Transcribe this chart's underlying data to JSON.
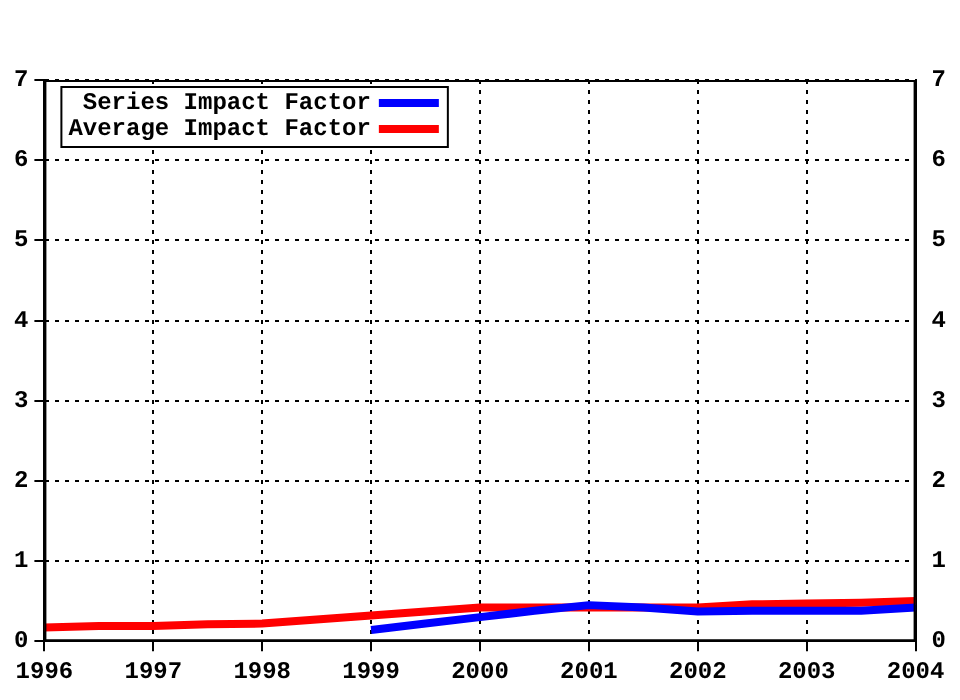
{
  "chart_data": {
    "type": "line",
    "xlim": [
      1996,
      2004
    ],
    "xticks": [
      1996,
      1997,
      1998,
      1999,
      2000,
      2001,
      2002,
      2003,
      2004
    ],
    "ylim": [
      0,
      7
    ],
    "yticks": [
      0,
      1,
      2,
      3,
      4,
      5,
      6,
      7
    ],
    "y2lim": [
      0,
      7
    ],
    "y2ticks": [
      0,
      1,
      2,
      3,
      4,
      5,
      6,
      7
    ],
    "grid": true,
    "legend": "top left",
    "line_style": "solid",
    "marker": "none",
    "series": [
      {
        "name": "Series Impact Factor",
        "color": "#0000ff",
        "x": [
          1999,
          1999.5,
          2000,
          2000.5,
          2001,
          2001.5,
          2002,
          2002.5,
          2003,
          2003.5,
          2004
        ],
        "values": [
          0.14,
          0.22,
          0.3,
          0.38,
          0.45,
          0.42,
          0.37,
          0.38,
          0.38,
          0.38,
          0.42
        ]
      },
      {
        "name": "Average Impact Factor",
        "color": "#ff0000",
        "x": [
          1996,
          1996.5,
          1997,
          1997.5,
          1998,
          1998.5,
          1999,
          1999.5,
          2000,
          2000.5,
          2001,
          2001.5,
          2002,
          2002.5,
          2003,
          2003.5,
          2004
        ],
        "values": [
          0.17,
          0.19,
          0.19,
          0.21,
          0.22,
          0.27,
          0.32,
          0.37,
          0.42,
          0.42,
          0.42,
          0.42,
          0.42,
          0.46,
          0.47,
          0.48,
          0.5
        ]
      }
    ]
  }
}
